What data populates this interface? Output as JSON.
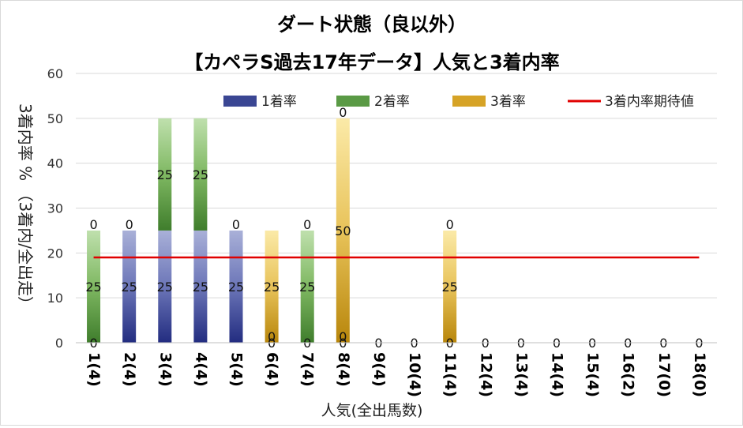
{
  "chart_data": {
    "type": "bar",
    "stacked": true,
    "title": "ダート状態（良以外）",
    "subtitle": "【カペラS過去17年データ】人気と3着内率",
    "xlabel": "人気(全出馬数)",
    "ylabel": "3着内率 %  （3着内/全出走）",
    "ylim": [
      0,
      60
    ],
    "yticks": [
      0,
      10,
      20,
      30,
      40,
      50,
      60
    ],
    "grid": true,
    "legend_position": "top",
    "categories": [
      "1(4)",
      "2(4)",
      "3(4)",
      "4(4)",
      "5(4)",
      "6(4)",
      "7(4)",
      "8(4)",
      "9(4)",
      "10(4)",
      "11(4)",
      "12(4)",
      "13(4)",
      "14(4)",
      "15(4)",
      "16(2)",
      "17(0)",
      "18(0)"
    ],
    "series": [
      {
        "name": "1着率",
        "color": "#2e3a8c",
        "values": [
          0,
          25,
          25,
          25,
          25,
          0,
          0,
          0,
          0,
          0,
          0,
          0,
          0,
          0,
          0,
          0,
          0,
          0
        ]
      },
      {
        "name": "2着率",
        "color": "#4f8f3a",
        "values": [
          25,
          0,
          25,
          25,
          0,
          0,
          25,
          0,
          0,
          0,
          0,
          0,
          0,
          0,
          0,
          0,
          0,
          0
        ]
      },
      {
        "name": "3着率",
        "color": "#c8960f",
        "values": [
          0,
          0,
          0,
          0,
          0,
          25,
          0,
          50,
          0,
          0,
          25,
          0,
          0,
          0,
          0,
          0,
          0,
          0
        ]
      }
    ],
    "reference_line": {
      "name": "3着内率期待値",
      "color": "#e00000",
      "value": 19
    },
    "data_labels": {
      "series1": [
        "0",
        "25",
        "25",
        "25",
        "25",
        "0",
        "0",
        "0",
        "0",
        "0",
        "0",
        "0",
        "0",
        "0",
        "0",
        "0",
        "0",
        "0"
      ],
      "series2": [
        "25",
        "0",
        "25",
        "25",
        "0",
        "0",
        "25",
        "0",
        "",
        "",
        "",
        "",
        "",
        "",
        "",
        "",
        "",
        ""
      ],
      "series3": [
        "0",
        "",
        "",
        "",
        "",
        "25",
        "0",
        "50",
        "",
        "",
        "25",
        "",
        "",
        "",
        "",
        "",
        "",
        ""
      ],
      "top": [
        "",
        "",
        "",
        "",
        "",
        "",
        "",
        "0",
        "",
        "",
        "0",
        "",
        "",
        "",
        "",
        "",
        "",
        ""
      ]
    }
  }
}
